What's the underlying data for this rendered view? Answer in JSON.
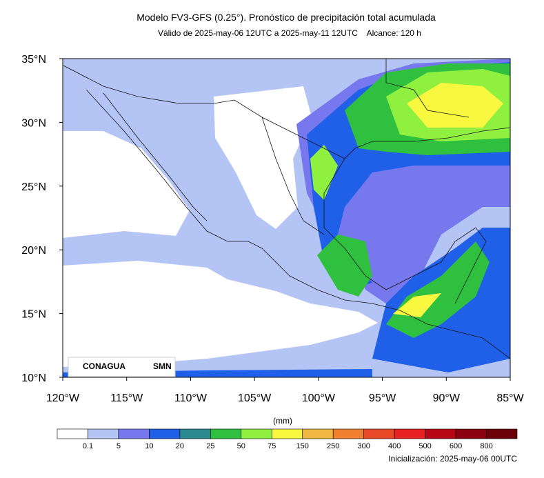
{
  "header": {
    "title": "Modelo FV3-GFS (0.25°). Pronóstico de precipitación total acumulada",
    "subtitle": "Válido de 2025-may-06 12UTC a 2025-may-11 12UTC    Alcance: 120 h"
  },
  "map": {
    "lonlim": [
      -120,
      -85
    ],
    "latlim": [
      10,
      35
    ],
    "lon_ticks": [
      {
        "value": -120,
        "label": "120°W"
      },
      {
        "value": -115,
        "label": "115°W"
      },
      {
        "value": -110,
        "label": "110°W"
      },
      {
        "value": -105,
        "label": "105°W"
      },
      {
        "value": -100,
        "label": "100°W"
      },
      {
        "value": -95,
        "label": "95°W"
      },
      {
        "value": -90,
        "label": "90°W"
      },
      {
        "value": -85,
        "label": "85°W"
      }
    ],
    "lat_ticks": [
      {
        "value": 35,
        "label": "35°N"
      },
      {
        "value": 30,
        "label": "30°N"
      },
      {
        "value": 25,
        "label": "25°N"
      },
      {
        "value": 20,
        "label": "20°N"
      },
      {
        "value": 15,
        "label": "15°N"
      },
      {
        "value": 10,
        "label": "10°N"
      }
    ]
  },
  "logos": {
    "left": "CONAGUA",
    "right": "SMN"
  },
  "colorbar": {
    "unit": "(mm)",
    "colors": [
      "#ffffff",
      "#b4c4f4",
      "#7878ee",
      "#2060e8",
      "#2a8a90",
      "#30c040",
      "#90f040",
      "#f8f840",
      "#f0b840",
      "#f08030",
      "#e84828",
      "#e82020",
      "#b80818",
      "#8c0010",
      "#6c0008"
    ],
    "levels": [
      0.1,
      5,
      10,
      20,
      25,
      50,
      75,
      150,
      250,
      300,
      400,
      500,
      600,
      800
    ]
  },
  "footer": "Inicialización: 2025-may-06 00UTC"
}
